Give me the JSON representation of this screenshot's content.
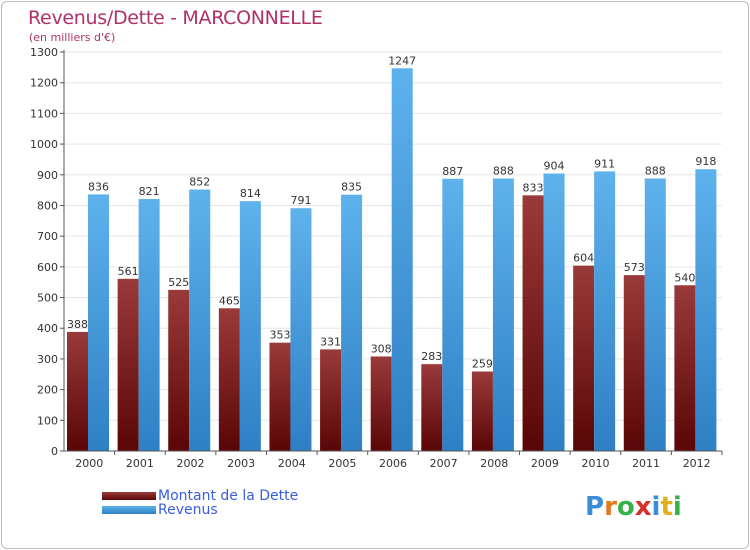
{
  "header": {
    "title": "Revenus/Dette - MARCONNELLE",
    "subtitle": "(en milliers d'€)"
  },
  "legend": {
    "items": [
      {
        "label": "Montant de la Dette",
        "color": "#7a1e1e"
      },
      {
        "label": "Revenus",
        "color": "#4a9fe0"
      }
    ]
  },
  "brand": {
    "logo_letters": [
      "P",
      "r",
      "o",
      "x",
      "i",
      "t",
      "i"
    ],
    "logo_colors": [
      "#3a8fd8",
      "#e07a1e",
      "#3ab04a",
      "#d8302a",
      "#3a8fd8",
      "#e0b01e",
      "#3ab04a"
    ]
  },
  "chart_data": {
    "type": "bar",
    "title": "Revenus/Dette - MARCONNELLE",
    "subtitle": "(en milliers d'€)",
    "categories": [
      "2000",
      "2001",
      "2002",
      "2003",
      "2004",
      "2005",
      "2006",
      "2007",
      "2008",
      "2009",
      "2010",
      "2011",
      "2012"
    ],
    "series": [
      {
        "name": "Montant de la Dette",
        "color": "#7a1e1e",
        "values": [
          388,
          561,
          525,
          465,
          353,
          331,
          308,
          283,
          259,
          833,
          604,
          573,
          540
        ]
      },
      {
        "name": "Revenus",
        "color": "#4a9fe0",
        "values": [
          836,
          821,
          852,
          814,
          791,
          835,
          1247,
          887,
          888,
          904,
          911,
          888,
          918
        ]
      }
    ],
    "ylim": [
      0,
      1300
    ],
    "yticks": [
      0,
      100,
      200,
      300,
      400,
      500,
      600,
      700,
      800,
      900,
      1000,
      1100,
      1200,
      1300
    ],
    "grid": true,
    "legend_position": "bottom-left"
  }
}
